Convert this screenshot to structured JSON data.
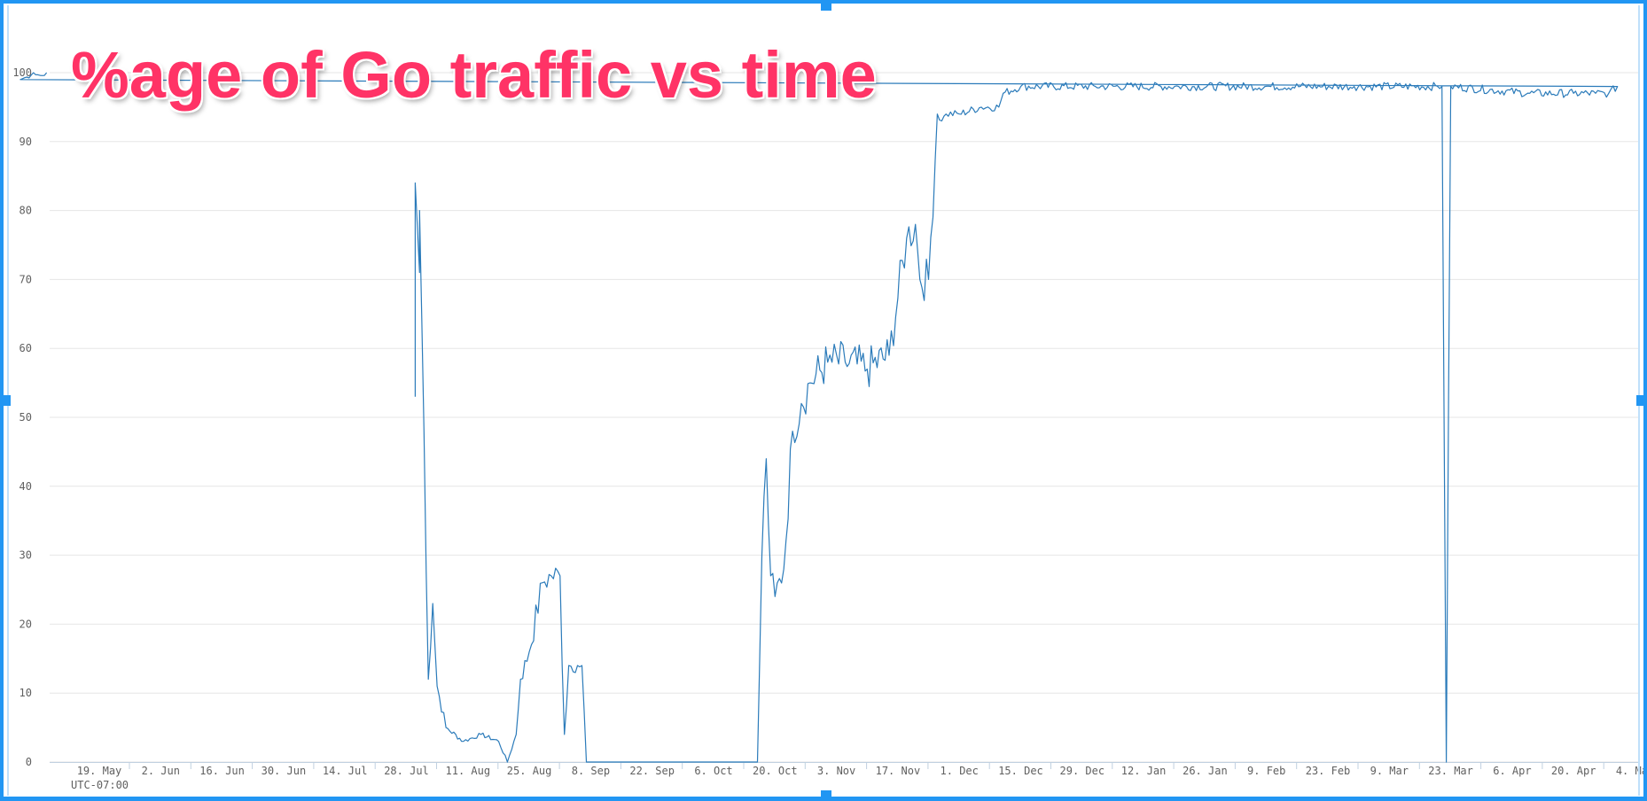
{
  "chart_data": {
    "type": "line",
    "title": "%age of Go traffic vs time",
    "xlabel": "",
    "ylabel": "",
    "timezone_label": "UTC-07:00",
    "ylim": [
      0,
      100
    ],
    "y_ticks": [
      0,
      10,
      20,
      30,
      40,
      50,
      60,
      70,
      80,
      90,
      100
    ],
    "x_ticks": [
      "19. May",
      "2. Jun",
      "16. Jun",
      "30. Jun",
      "14. Jul",
      "28. Jul",
      "11. Aug",
      "25. Aug",
      "8. Sep",
      "22. Sep",
      "6. Oct",
      "20. Oct",
      "3. Nov",
      "17. Nov",
      "1. Dec",
      "15. Dec",
      "29. Dec",
      "12. Jan",
      "26. Jan",
      "9. Feb",
      "23. Feb",
      "9. Mar",
      "23. Mar",
      "6. Apr",
      "20. Apr",
      "4. May"
    ],
    "line_color": "#2b7bba",
    "grid": true,
    "series": [
      {
        "x": [
          "30. Jul",
          "30. Jul",
          "31. Jul",
          "31. Jul",
          "1. Aug",
          "2. Aug",
          "3. Aug",
          "4. Aug",
          "6. Aug",
          "10. Aug",
          "14. Aug",
          "18. Aug",
          "20. Aug",
          "22. Aug",
          "23. Aug",
          "25. Aug",
          "28. Aug",
          "30. Aug",
          "1. Sep",
          "2. Sep",
          "3. Sep",
          "5. Sep",
          "6. Sep",
          "7. Sep",
          "9. Sep",
          "11. Sep",
          "12. Sep",
          "13. Sep",
          "16. Oct",
          "17. Oct",
          "18. Oct",
          "19. Oct",
          "20. Oct",
          "22. Oct",
          "24. Oct",
          "26. Oct",
          "28. Oct",
          "1. Nov",
          "5. Nov",
          "10. Nov",
          "15. Nov",
          "19. Nov",
          "21. Nov",
          "22. Nov",
          "24. Nov",
          "26. Nov",
          "27. Nov",
          "28. Nov",
          "1. Dec",
          "6. Dec",
          "10. Dec",
          "11. Dec",
          "15. Dec",
          "1. Jan",
          "20. Jan",
          "10. Feb",
          "1. Mar",
          "20. Mar",
          "21. Mar",
          "22. Mar",
          "23. Mar",
          "10. Apr",
          "20. Apr",
          "25. Apr",
          "28. Apr",
          "30. Apr",
          "1. May",
          "4. May",
          "7. May"
        ],
        "y": [
          53,
          84,
          71,
          80,
          48,
          12,
          23,
          11,
          5,
          3,
          4,
          3,
          0,
          4,
          12,
          16,
          26,
          27,
          27,
          4,
          14,
          14,
          14,
          0,
          0,
          0,
          0,
          0,
          0,
          30,
          44,
          27,
          24,
          28,
          48,
          52,
          55,
          58,
          58,
          57,
          59,
          76,
          78,
          70,
          70,
          94,
          93,
          94,
          94,
          95,
          95,
          97,
          98,
          98,
          98,
          98,
          98,
          98,
          98,
          0,
          98,
          97,
          97,
          97,
          97,
          98,
          99,
          100,
          100
        ]
      }
    ]
  },
  "colors": {
    "selection_border": "#2196f3",
    "title_color": "#ff3366",
    "grid": "#e6e6e6",
    "axis_text": "#606060"
  }
}
